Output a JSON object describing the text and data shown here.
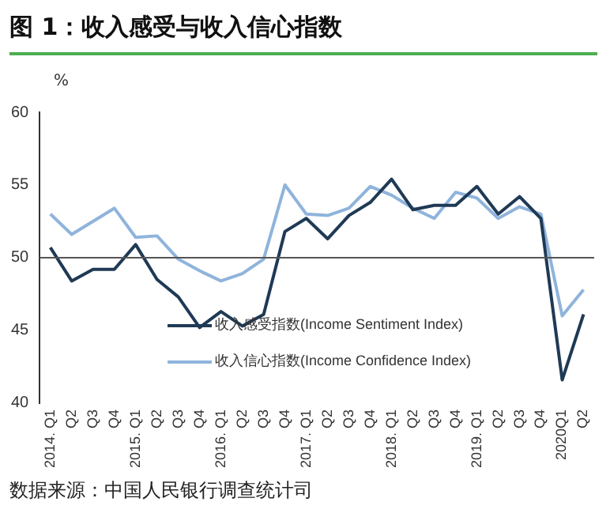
{
  "chart_data": {
    "type": "line",
    "title": "图 1：收入感受与收入信心指数",
    "ylabel": "%",
    "categories": [
      "2014. Q1",
      "Q2",
      "Q3",
      "Q4",
      "2015. Q1",
      "Q2",
      "Q3",
      "Q4",
      "2016. Q1",
      "Q2",
      "Q3",
      "Q4",
      "2017. Q1",
      "Q2",
      "Q3",
      "Q4",
      "2018. Q1",
      "Q2",
      "Q3",
      "Q4",
      "2019. Q1",
      "Q2",
      "Q3",
      "Q4",
      "2020Q1",
      "Q2"
    ],
    "series": [
      {
        "name": "收入感受指数(Income Sentiment Index)",
        "color": "#1f3a55",
        "values": [
          50.7,
          48.4,
          49.2,
          49.2,
          50.9,
          48.5,
          47.3,
          45.2,
          46.3,
          45.3,
          46.1,
          51.8,
          52.7,
          51.3,
          52.9,
          53.8,
          55.4,
          53.3,
          53.6,
          53.6,
          54.9,
          53.0,
          54.2,
          52.7,
          41.6,
          46.1
        ]
      },
      {
        "name": "收入信心指数(Income Confidence Index)",
        "color": "#8fb4dc",
        "values": [
          53.0,
          51.6,
          52.5,
          53.4,
          51.4,
          51.5,
          49.9,
          49.1,
          48.4,
          48.9,
          49.9,
          55.0,
          53.0,
          52.9,
          53.4,
          54.9,
          54.3,
          53.4,
          52.7,
          54.5,
          54.1,
          52.7,
          53.5,
          53.0,
          46.0,
          47.8
        ]
      }
    ],
    "ylim": [
      40,
      60
    ],
    "yticks": [
      40,
      45,
      50,
      55,
      60
    ],
    "grid": false,
    "legend": "bottom left",
    "marker": "none",
    "line_style": "solid",
    "ref_lines": [
      {
        "axis": "y",
        "value": 50,
        "color": "#555555"
      }
    ],
    "annotations": [
      "数据来源：中国人民银行调查统计司"
    ]
  }
}
